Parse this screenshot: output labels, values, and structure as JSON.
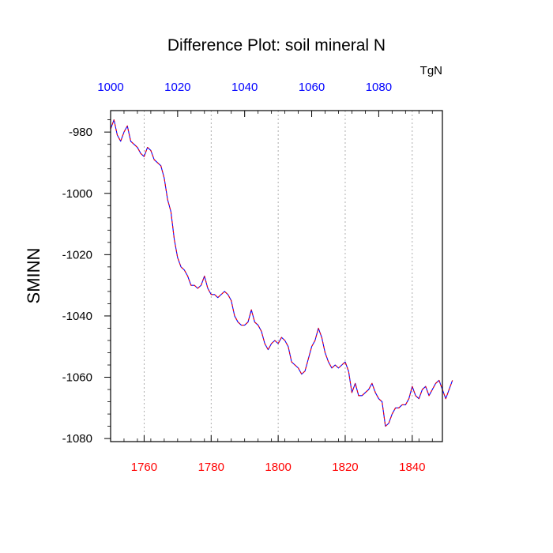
{
  "chart_data": {
    "type": "line",
    "title": "Difference Plot: soil mineral N",
    "ylabel": "SMINN",
    "units_label": "TgN",
    "xlim": [
      1750,
      1849
    ],
    "ylim": [
      -1081,
      -973
    ],
    "x_bottom": {
      "ticks": [
        1760,
        1780,
        1800,
        1820,
        1840
      ],
      "labels": [
        "1760",
        "1780",
        "1800",
        "1820",
        "1840"
      ],
      "color": "#ff0000"
    },
    "x_top": {
      "ticks": [
        1750,
        1770,
        1790,
        1810,
        1830
      ],
      "labels": [
        "1000",
        "1020",
        "1040",
        "1060",
        "1080"
      ],
      "color": "#0000ff"
    },
    "y_ticks": [
      -980,
      -1000,
      -1020,
      -1040,
      -1060,
      -1080
    ],
    "y_labels": [
      "-980",
      "-1000",
      "-1020",
      "-1040",
      "-1060",
      "-1080"
    ],
    "grid": "vertical-dotted-at-bottom-ticks",
    "series": [
      {
        "color_solid": "#0000ff",
        "color_dashed": "#ff0000",
        "x_start": 1750,
        "x_step": 1,
        "values": [
          -979,
          -976,
          -981,
          -983,
          -980,
          -978,
          -983,
          -984,
          -985,
          -987,
          -988,
          -985,
          -986,
          -989,
          -990,
          -991,
          -995,
          -1002,
          -1006,
          -1015,
          -1021,
          -1024,
          -1025,
          -1027,
          -1030,
          -1030,
          -1031,
          -1030,
          -1027,
          -1031,
          -1033,
          -1033,
          -1034,
          -1033,
          -1032,
          -1033,
          -1035,
          -1040,
          -1042,
          -1043,
          -1043,
          -1042,
          -1038,
          -1042,
          -1043,
          -1045,
          -1049,
          -1051,
          -1049,
          -1048,
          -1049,
          -1047,
          -1048,
          -1050,
          -1055,
          -1056,
          -1057,
          -1059,
          -1058,
          -1054,
          -1050,
          -1048,
          -1044,
          -1047,
          -1052,
          -1055,
          -1057,
          -1056,
          -1057,
          -1056,
          -1055,
          -1058,
          -1065,
          -1062,
          -1066,
          -1066,
          -1065,
          -1064,
          -1062,
          -1065,
          -1067,
          -1068,
          -1076,
          -1075,
          -1072,
          -1070,
          -1070,
          -1069,
          -1069,
          -1067,
          -1063,
          -1066,
          -1067,
          -1064,
          -1063,
          -1066,
          -1064,
          -1062,
          -1061,
          -1064,
          -1067,
          -1064,
          -1061
        ]
      }
    ]
  }
}
